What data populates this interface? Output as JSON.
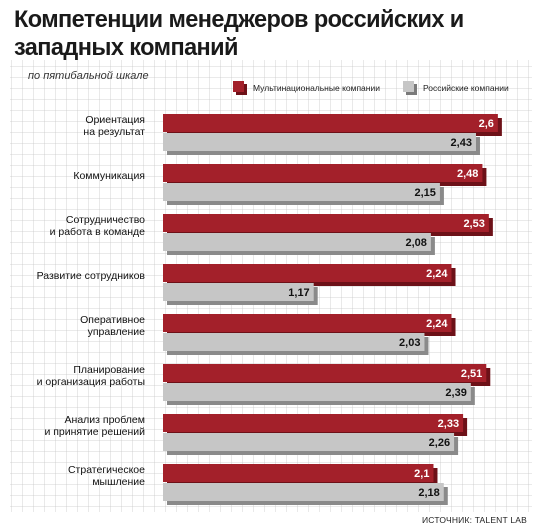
{
  "chart_data": {
    "type": "bar",
    "orientation": "horizontal",
    "title": "Компетенции менеджеров российских и западных компаний",
    "subtitle": "по пятибальной шкале",
    "categories": [
      "Ориентация\nна результат",
      "Коммуникация",
      "Сотрудничество\nи работа в команде",
      "Развитие сотрудников",
      "Оперативное\nуправление",
      "Планирование\nи организация работы",
      "Анализ проблем\nи принятие решений",
      "Стратегическое\nмышление"
    ],
    "series": [
      {
        "name": "Мультинациональные компании",
        "color": "#a3202a",
        "values": [
          2.6,
          2.48,
          2.53,
          2.24,
          2.24,
          2.51,
          2.33,
          2.1
        ],
        "labels": [
          "2,6",
          "2,48",
          "2,53",
          "2,24",
          "2,24",
          "2,51",
          "2,33",
          "2,1"
        ]
      },
      {
        "name": "Российские компании",
        "color": "#c6c6c6",
        "values": [
          2.43,
          2.15,
          2.08,
          1.17,
          2.03,
          2.39,
          2.26,
          2.18
        ],
        "labels": [
          "2,43",
          "2,15",
          "2,08",
          "1,17",
          "2,03",
          "2,39",
          "2,26",
          "2,18"
        ]
      }
    ],
    "legend_position": "top-right",
    "grid": true
  },
  "source": "ИСТОЧНИК: TALENT LAB"
}
